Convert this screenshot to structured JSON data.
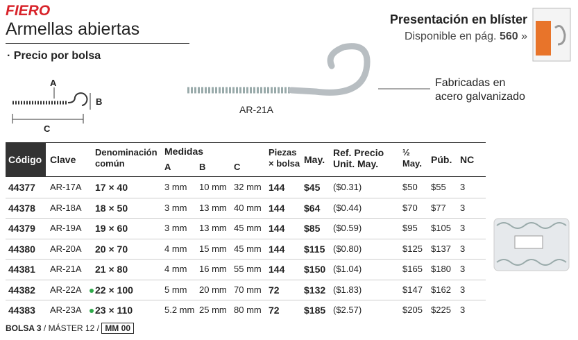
{
  "header": {
    "brand": "FIERO",
    "title": "Armellas abiertas",
    "note": "· Precio por bolsa"
  },
  "blister": {
    "title": "Presentación en blíster",
    "text": "Disponible en pág.",
    "page": "560",
    "arrow": "»"
  },
  "diagram": {
    "a": "A",
    "b": "B",
    "c": "C"
  },
  "product_label": "AR-21A",
  "description": [
    "Fabricadas en",
    "acero galvanizado"
  ],
  "table": {
    "headers": {
      "code": "Código",
      "key": "Clave",
      "name": [
        "Denominación",
        "común"
      ],
      "measures": "Medidas",
      "a": "A",
      "b": "B",
      "c": "C",
      "pieces": [
        "Piezas",
        "× bolsa"
      ],
      "may": "May.",
      "ref": [
        "Ref. Precio",
        "Unit. May."
      ],
      "half": [
        "½",
        "May."
      ],
      "pub": "Púb.",
      "nc": "NC"
    },
    "rows": [
      {
        "cells": [
          "44377",
          "AR-17A",
          "17 × 40",
          "3 mm",
          "10 mm",
          "32 mm",
          "144",
          "$45",
          "($0.31)",
          "$50",
          "$55",
          "3"
        ],
        "dot": false
      },
      {
        "cells": [
          "44378",
          "AR-18A",
          "18 × 50",
          "3 mm",
          "13 mm",
          "40 mm",
          "144",
          "$64",
          "($0.44)",
          "$70",
          "$77",
          "3"
        ],
        "dot": false
      },
      {
        "cells": [
          "44379",
          "AR-19A",
          "19 × 60",
          "3 mm",
          "13 mm",
          "45 mm",
          "144",
          "$85",
          "($0.59)",
          "$95",
          "$105",
          "3"
        ],
        "dot": false
      },
      {
        "cells": [
          "44380",
          "AR-20A",
          "20 × 70",
          "4 mm",
          "15 mm",
          "45 mm",
          "144",
          "$115",
          "($0.80)",
          "$125",
          "$137",
          "3"
        ],
        "dot": false
      },
      {
        "cells": [
          "44381",
          "AR-21A",
          "21 × 80",
          "4 mm",
          "16 mm",
          "55 mm",
          "144",
          "$150",
          "($1.04)",
          "$165",
          "$180",
          "3"
        ],
        "dot": false
      },
      {
        "cells": [
          "44382",
          "AR-22A",
          "22 × 100",
          "5 mm",
          "20 mm",
          "70 mm",
          "72",
          "$132",
          "($1.83)",
          "$147",
          "$162",
          "3"
        ],
        "dot": true
      },
      {
        "cells": [
          "44383",
          "AR-23A",
          "23 × 110",
          "5.2 mm",
          "25 mm",
          "80 mm",
          "72",
          "$185",
          "($2.57)",
          "$205",
          "$225",
          "3"
        ],
        "dot": true
      }
    ]
  },
  "footer": {
    "bag": "BOLSA 3",
    "sep1": "/",
    "master": "MÁSTER 12",
    "sep2": "/",
    "code": "MM 00"
  }
}
